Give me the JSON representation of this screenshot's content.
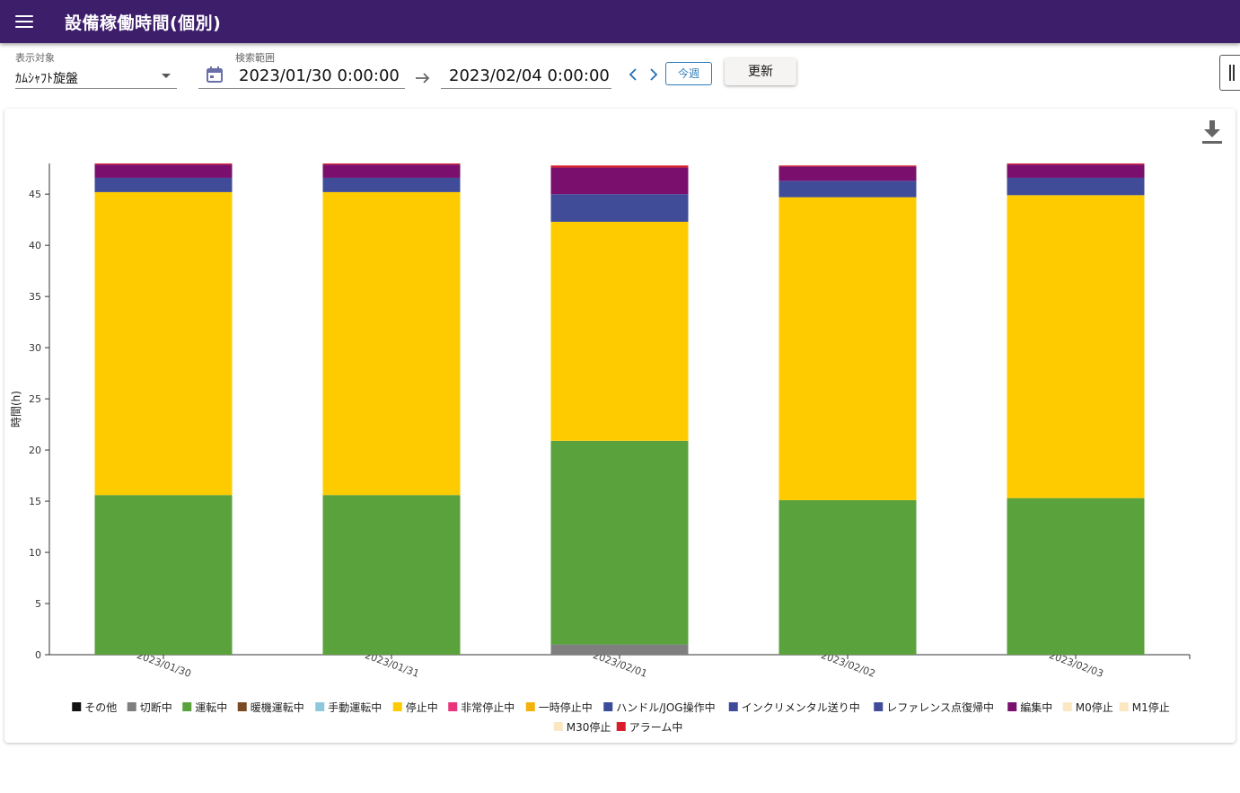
{
  "app": {
    "title": "設備稼働時間(個別)",
    "menu_icon": "menu-icon"
  },
  "filters": {
    "target_label": "表示対象",
    "target_value": "ｶﾑｼｬﾌﾄ旋盤",
    "range_label": "検索範囲",
    "start_date": "2023/01/30 0:00:00",
    "end_date": "2023/02/04 0:00:00",
    "prev_icon": "chevron-left-icon",
    "next_icon": "chevron-right-icon",
    "this_week_label": "今週",
    "update_label": "更新"
  },
  "icons": {
    "calendar": "calendar-icon",
    "arrow": "arrow-right-icon",
    "download": "download-icon"
  },
  "chart_data": {
    "type": "bar",
    "stacked": true,
    "ylabel": "時間(h)",
    "ylim": [
      0,
      48
    ],
    "yticks": [
      0,
      5,
      10,
      15,
      20,
      25,
      30,
      35,
      40,
      45
    ],
    "categories": [
      "2023/01/30",
      "2023/01/31",
      "2023/02/01",
      "2023/02/02",
      "2023/02/03"
    ],
    "series": [
      {
        "name": "その他",
        "color": "#111111",
        "values": [
          0,
          0,
          0,
          0,
          0
        ]
      },
      {
        "name": "切断中",
        "color": "#7f7f7f",
        "values": [
          0,
          0,
          1.0,
          0,
          0
        ]
      },
      {
        "name": "運転中",
        "color": "#59a23c",
        "values": [
          15.6,
          15.6,
          19.9,
          15.1,
          15.3
        ]
      },
      {
        "name": "暖機運転中",
        "color": "#7a4b22",
        "values": [
          0,
          0,
          0,
          0,
          0
        ]
      },
      {
        "name": "手動運転中",
        "color": "#8ec9db",
        "values": [
          0,
          0,
          0,
          0,
          0
        ]
      },
      {
        "name": "停止中",
        "color": "#fecb00",
        "values": [
          29.6,
          29.6,
          21.4,
          29.6,
          29.6
        ]
      },
      {
        "name": "非常停止中",
        "color": "#e8347b",
        "values": [
          0,
          0,
          0,
          0,
          0
        ]
      },
      {
        "name": "一時停止中",
        "color": "#f5b20b",
        "values": [
          0,
          0,
          0,
          0,
          0
        ]
      },
      {
        "name": "ハンドル/JOG操作中",
        "color": "#3b4a9a",
        "values": [
          0,
          0,
          0,
          0,
          0
        ]
      },
      {
        "name": "インクリメンタル送り中",
        "color": "#3f4b98",
        "values": [
          0,
          0,
          0,
          0,
          0
        ]
      },
      {
        "name": "レファレンス点復帰中",
        "color": "#414c99",
        "values": [
          1.4,
          1.4,
          2.7,
          1.6,
          1.7
        ]
      },
      {
        "name": "編集中",
        "color": "#7a0f6d",
        "values": [
          1.3,
          1.3,
          2.6,
          1.4,
          1.3
        ]
      },
      {
        "name": "M0停止",
        "color": "#fbe7c1",
        "values": [
          0,
          0,
          0,
          0,
          0
        ]
      },
      {
        "name": "M1停止",
        "color": "#fbe7c1",
        "values": [
          0,
          0,
          0,
          0,
          0
        ]
      },
      {
        "name": "M30停止",
        "color": "#fbe7c1",
        "values": [
          0,
          0,
          0,
          0,
          0
        ]
      },
      {
        "name": "アラーム中",
        "color": "#d81e2c",
        "values": [
          0.1,
          0.1,
          0.2,
          0.1,
          0.1
        ]
      }
    ],
    "legend_position": "bottom",
    "grid": false
  }
}
